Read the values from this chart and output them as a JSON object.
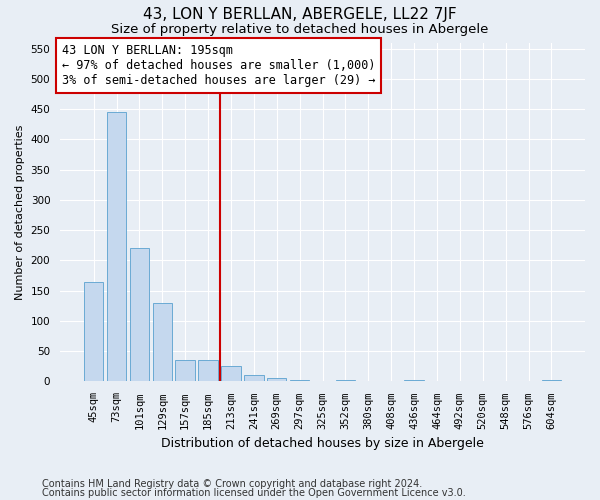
{
  "title": "43, LON Y BERLLAN, ABERGELE, LL22 7JF",
  "subtitle": "Size of property relative to detached houses in Abergele",
  "xlabel": "Distribution of detached houses by size in Abergele",
  "ylabel": "Number of detached properties",
  "categories": [
    "45sqm",
    "73sqm",
    "101sqm",
    "129sqm",
    "157sqm",
    "185sqm",
    "213sqm",
    "241sqm",
    "269sqm",
    "297sqm",
    "325sqm",
    "352sqm",
    "380sqm",
    "408sqm",
    "436sqm",
    "464sqm",
    "492sqm",
    "520sqm",
    "548sqm",
    "576sqm",
    "604sqm"
  ],
  "values": [
    165,
    445,
    220,
    130,
    35,
    35,
    25,
    10,
    5,
    2,
    0,
    2,
    0,
    0,
    2,
    0,
    0,
    0,
    0,
    0,
    2
  ],
  "bar_color": "#c5d8ee",
  "bar_edge_color": "#6aaad4",
  "vline_x_index": 5.5,
  "vline_color": "#cc0000",
  "annotation_text": "43 LON Y BERLLAN: 195sqm\n← 97% of detached houses are smaller (1,000)\n3% of semi-detached houses are larger (29) →",
  "annotation_box_color": "white",
  "annotation_box_edge_color": "#cc0000",
  "ylim": [
    0,
    560
  ],
  "yticks": [
    0,
    50,
    100,
    150,
    200,
    250,
    300,
    350,
    400,
    450,
    500,
    550
  ],
  "footer_line1": "Contains HM Land Registry data © Crown copyright and database right 2024.",
  "footer_line2": "Contains public sector information licensed under the Open Government Licence v3.0.",
  "bg_color": "#e8eef5",
  "plot_bg_color": "#e8eef5",
  "grid_color": "white",
  "title_fontsize": 11,
  "subtitle_fontsize": 9.5,
  "xlabel_fontsize": 9,
  "ylabel_fontsize": 8,
  "tick_fontsize": 7.5,
  "annotation_fontsize": 8.5,
  "footer_fontsize": 7
}
